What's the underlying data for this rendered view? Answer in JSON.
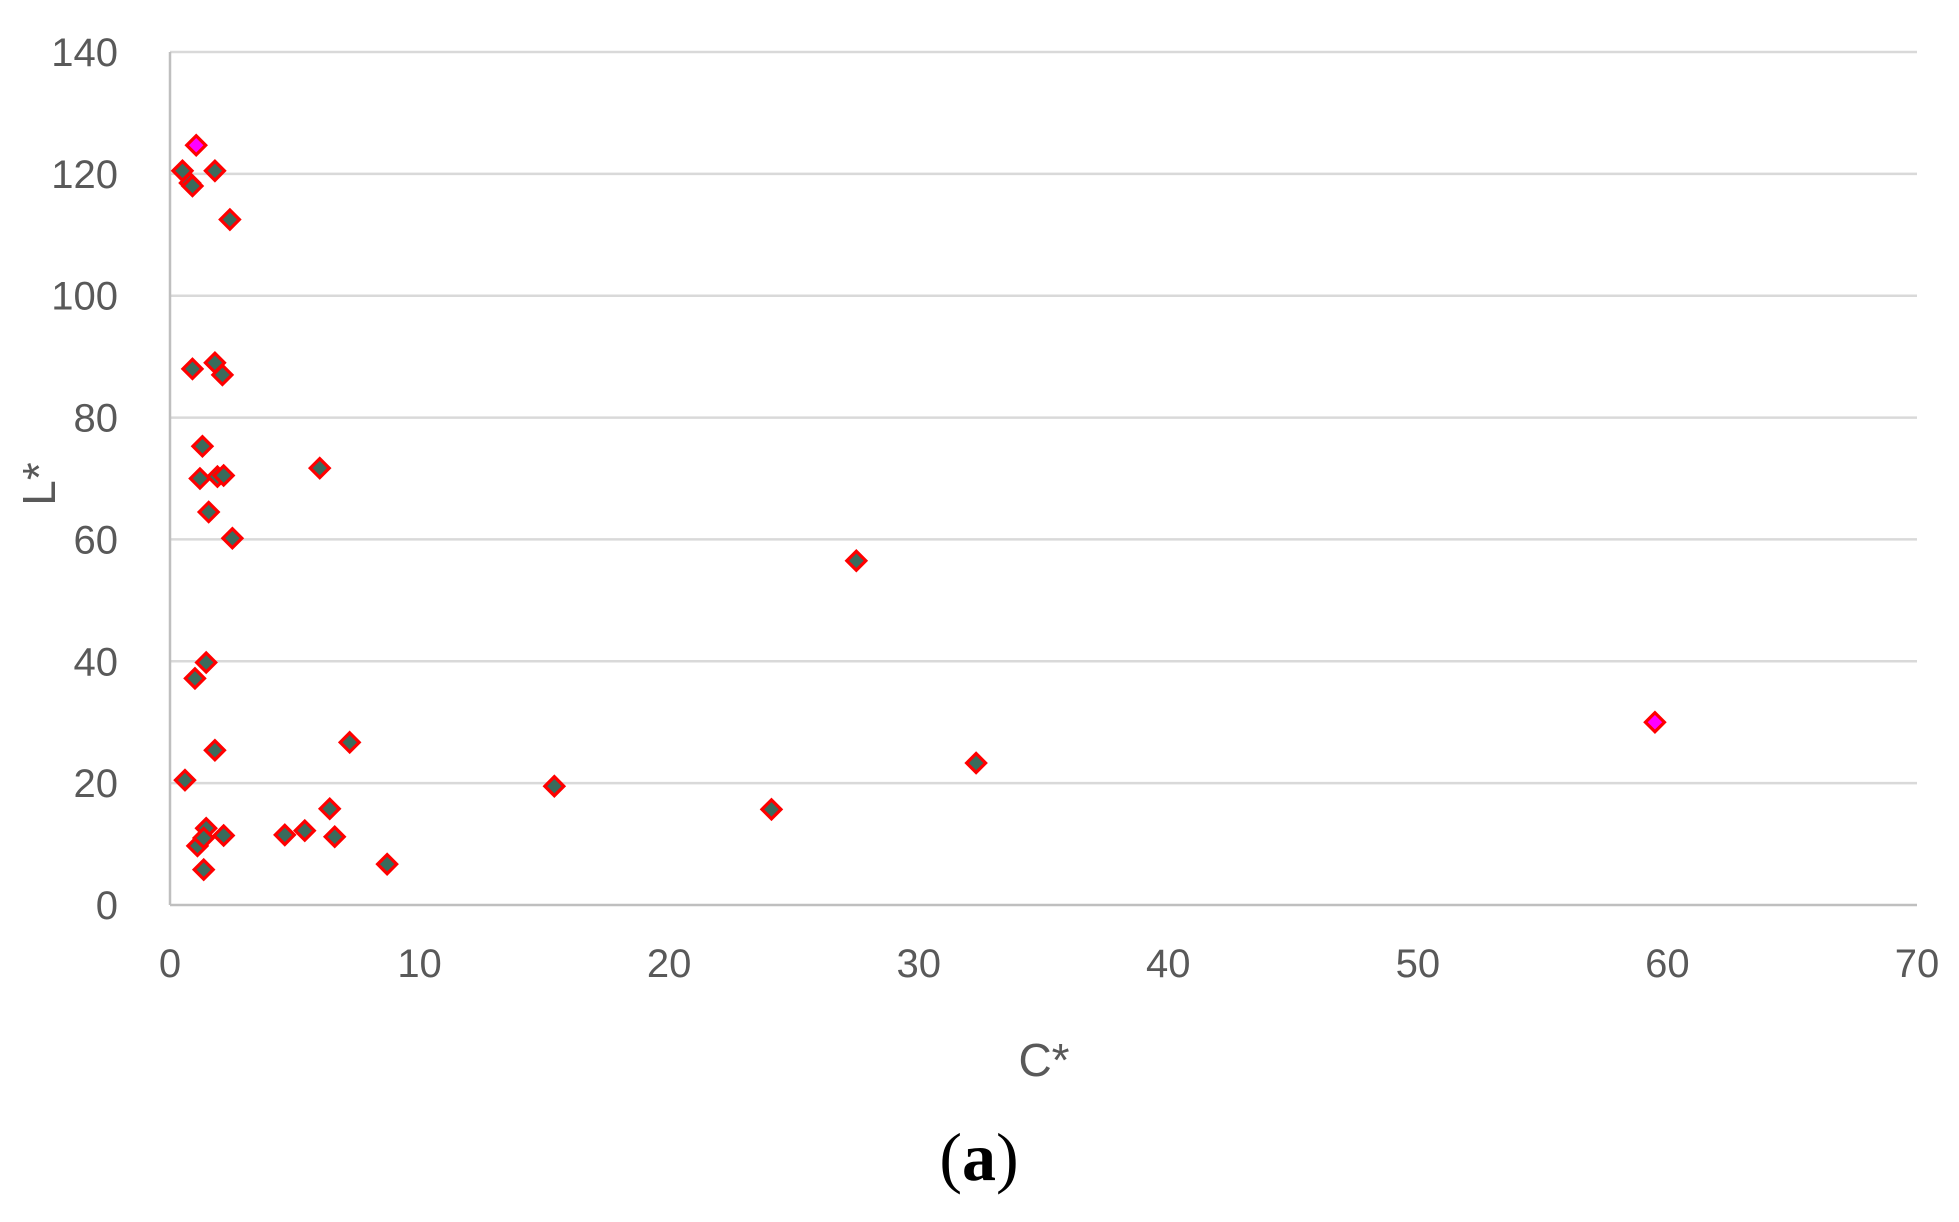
{
  "chart_data": {
    "type": "scatter",
    "title": "",
    "xlabel": "C*",
    "ylabel": "L*",
    "xlim": [
      0,
      70
    ],
    "ylim": [
      0,
      140
    ],
    "x_ticks": [
      0,
      10,
      20,
      30,
      40,
      50,
      60,
      70
    ],
    "y_ticks": [
      0,
      20,
      40,
      60,
      80,
      100,
      120,
      140
    ],
    "grid": "horizontal",
    "legend": "none",
    "marker": "diamond",
    "colors": {
      "marker_fill": "#3a6b5c",
      "marker_edge": "#ff0000",
      "highlight_fill": "#ff00ff",
      "gridline": "#d9d9d9",
      "axis": "#bfbfbf"
    },
    "series": [
      {
        "points": [
          [
            0.5,
            120.5
          ],
          [
            0.8,
            118.5
          ],
          [
            0.9,
            118.0
          ],
          [
            1.05,
            124.7
          ],
          [
            1.8,
            120.5
          ],
          [
            2.4,
            112.5
          ],
          [
            0.9,
            88.0
          ],
          [
            1.8,
            89.0
          ],
          [
            2.1,
            87.0
          ],
          [
            1.3,
            75.3
          ],
          [
            1.2,
            70.0
          ],
          [
            1.9,
            70.3
          ],
          [
            2.15,
            70.5
          ],
          [
            6.0,
            71.7
          ],
          [
            1.55,
            64.5
          ],
          [
            2.5,
            60.2
          ],
          [
            27.5,
            56.5
          ],
          [
            1.45,
            39.8
          ],
          [
            1.0,
            37.2
          ],
          [
            59.5,
            30.0
          ],
          [
            7.2,
            26.7
          ],
          [
            1.8,
            25.4
          ],
          [
            32.3,
            23.3
          ],
          [
            0.6,
            20.5
          ],
          [
            15.4,
            19.5
          ],
          [
            6.4,
            15.8
          ],
          [
            24.1,
            15.7
          ],
          [
            1.45,
            12.6
          ],
          [
            5.4,
            12.2
          ],
          [
            4.6,
            11.5
          ],
          [
            2.15,
            11.4
          ],
          [
            6.6,
            11.2
          ],
          [
            1.1,
            9.7
          ],
          [
            1.35,
            11.0
          ],
          [
            8.7,
            6.7
          ],
          [
            1.35,
            5.8
          ]
        ],
        "highlight_indices": [
          3,
          19
        ]
      }
    ],
    "caption": {
      "open": "(",
      "letter": "a",
      "close": ")"
    }
  }
}
